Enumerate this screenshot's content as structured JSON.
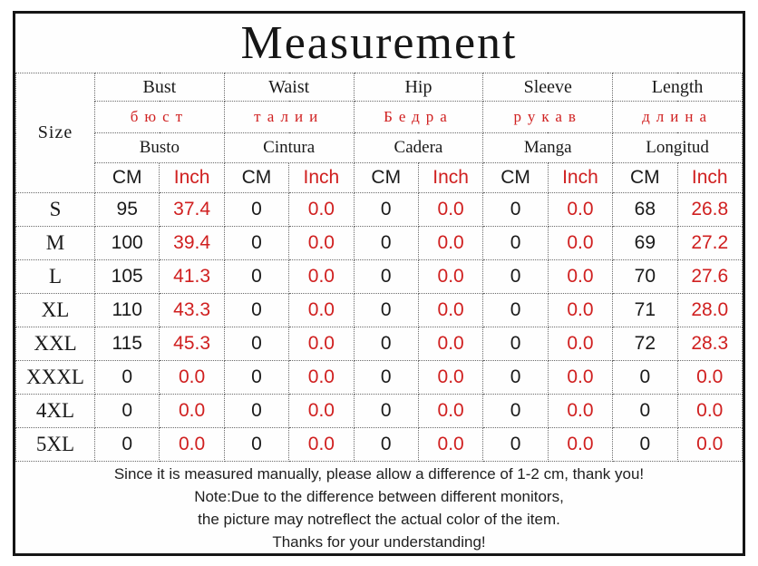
{
  "title": "Measurement",
  "colors": {
    "accent_red": "#d02020",
    "text_black": "#1a1a1a"
  },
  "table": {
    "size_header": "Size",
    "units": {
      "cm": "CM",
      "inch": "Inch"
    },
    "columns": [
      {
        "en": "Bust",
        "ru": "бюст",
        "es": "Busto"
      },
      {
        "en": "Waist",
        "ru": "талии",
        "es": "Cintura"
      },
      {
        "en": "Hip",
        "ru": "Бедра",
        "es": "Cadera"
      },
      {
        "en": "Sleeve",
        "ru": "рукав",
        "es": "Manga"
      },
      {
        "en": "Length",
        "ru": "длина",
        "es": "Longitud"
      }
    ],
    "rows": [
      {
        "size": "S",
        "values": [
          "95",
          "37.4",
          "0",
          "0.0",
          "0",
          "0.0",
          "0",
          "0.0",
          "68",
          "26.8"
        ]
      },
      {
        "size": "M",
        "values": [
          "100",
          "39.4",
          "0",
          "0.0",
          "0",
          "0.0",
          "0",
          "0.0",
          "69",
          "27.2"
        ]
      },
      {
        "size": "L",
        "values": [
          "105",
          "41.3",
          "0",
          "0.0",
          "0",
          "0.0",
          "0",
          "0.0",
          "70",
          "27.6"
        ]
      },
      {
        "size": "XL",
        "values": [
          "110",
          "43.3",
          "0",
          "0.0",
          "0",
          "0.0",
          "0",
          "0.0",
          "71",
          "28.0"
        ]
      },
      {
        "size": "XXL",
        "values": [
          "115",
          "45.3",
          "0",
          "0.0",
          "0",
          "0.0",
          "0",
          "0.0",
          "72",
          "28.3"
        ]
      },
      {
        "size": "XXXL",
        "values": [
          "0",
          "0.0",
          "0",
          "0.0",
          "0",
          "0.0",
          "0",
          "0.0",
          "0",
          "0.0"
        ]
      },
      {
        "size": "4XL",
        "values": [
          "0",
          "0.0",
          "0",
          "0.0",
          "0",
          "0.0",
          "0",
          "0.0",
          "0",
          "0.0"
        ]
      },
      {
        "size": "5XL",
        "values": [
          "0",
          "0.0",
          "0",
          "0.0",
          "0",
          "0.0",
          "0",
          "0.0",
          "0",
          "0.0"
        ]
      }
    ]
  },
  "notes": [
    "Since it is measured manually, please allow a difference of 1-2 cm, thank you!",
    "Note:Due to the difference between different monitors,",
    "the picture may notreflect the actual color of the item.",
    "Thanks for your understanding!"
  ]
}
